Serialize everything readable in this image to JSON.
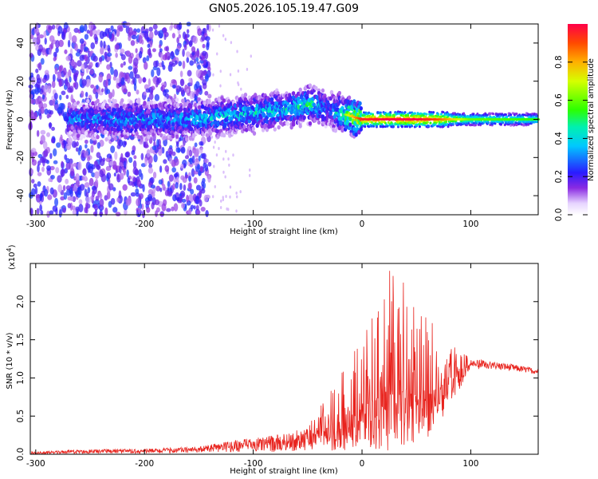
{
  "figure": {
    "title": "GN05.2026.105.19.47.G09"
  },
  "chart_data": [
    {
      "type": "heatmap",
      "xlabel": "Height of straight line (km)",
      "ylabel": "Frequency (Hz)",
      "xlim": [
        -305,
        162
      ],
      "ylim": [
        -50,
        50
      ],
      "xticks": [
        -300,
        -200,
        -100,
        0,
        100
      ],
      "yticks": [
        -40,
        -20,
        0,
        20,
        40
      ],
      "colorbar": {
        "label": "Normalized spectral amplitude",
        "range": [
          0,
          1
        ],
        "ticks": [
          0.0,
          0.2,
          0.4,
          0.6,
          0.8
        ],
        "tick_labels": [
          "0.0",
          "0.2",
          "0.4",
          "0.6",
          "0.8"
        ],
        "colormap": "rainbow (white→purple→blue→cyan→green→yellow→orange→red)"
      },
      "description_points": [
        {
          "x": -255,
          "y": 0,
          "amp": 0.35
        },
        {
          "x": -150,
          "y": 0,
          "amp": 0.4
        },
        {
          "x": -75,
          "y": 5,
          "amp": 0.45
        },
        {
          "x": -45,
          "y": 8,
          "amp": 0.5
        },
        {
          "x": -30,
          "y": 5,
          "amp": 0.3
        },
        {
          "x": 0,
          "y": 0,
          "amp": 0.9
        },
        {
          "x": 25,
          "y": 0,
          "amp": 0.95
        },
        {
          "x": 50,
          "y": 0,
          "amp": 0.95
        },
        {
          "x": 70,
          "y": 0,
          "amp": 0.85
        },
        {
          "x": 100,
          "y": 0,
          "amp": 0.55
        },
        {
          "x": 160,
          "y": 0,
          "amp": 0.5
        }
      ]
    },
    {
      "type": "line",
      "xlabel": "Height of straight line (km)",
      "ylabel": "SNR (10 * v/v)",
      "y_multiplier": "(x10",
      "y_multiplier_exp": "4",
      "y_multiplier_close": ")",
      "xlim": [
        -305,
        162
      ],
      "ylim": [
        0,
        2.5
      ],
      "xticks": [
        -300,
        -200,
        -100,
        0,
        100
      ],
      "yticks": [
        0.0,
        0.5,
        1.0,
        1.5,
        2.0
      ],
      "ytick_labels": [
        "0.0",
        "0.5",
        "1.0",
        "1.5",
        "2.0"
      ],
      "color": "#e8231d",
      "envelope": [
        {
          "x": -305,
          "lo": 0.0,
          "hi": 0.03
        },
        {
          "x": -260,
          "lo": 0.01,
          "hi": 0.06
        },
        {
          "x": -200,
          "lo": 0.01,
          "hi": 0.07
        },
        {
          "x": -150,
          "lo": 0.02,
          "hi": 0.1
        },
        {
          "x": -120,
          "lo": 0.03,
          "hi": 0.18
        },
        {
          "x": -80,
          "lo": 0.03,
          "hi": 0.25
        },
        {
          "x": -50,
          "lo": 0.05,
          "hi": 0.35
        },
        {
          "x": -40,
          "lo": 0.05,
          "hi": 0.6
        },
        {
          "x": -30,
          "lo": 0.05,
          "hi": 0.9
        },
        {
          "x": -15,
          "lo": 0.05,
          "hi": 1.2
        },
        {
          "x": 0,
          "lo": 0.1,
          "hi": 1.5
        },
        {
          "x": 15,
          "lo": 0.05,
          "hi": 2.0
        },
        {
          "x": 25,
          "lo": 0.05,
          "hi": 2.5
        },
        {
          "x": 45,
          "lo": 0.05,
          "hi": 2.2
        },
        {
          "x": 60,
          "lo": 0.2,
          "hi": 1.8
        },
        {
          "x": 80,
          "lo": 0.6,
          "hi": 1.5
        },
        {
          "x": 100,
          "lo": 1.12,
          "hi": 1.25
        },
        {
          "x": 130,
          "lo": 1.1,
          "hi": 1.2
        },
        {
          "x": 162,
          "lo": 1.05,
          "hi": 1.12
        }
      ]
    }
  ]
}
